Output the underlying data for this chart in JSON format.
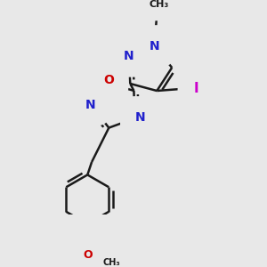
{
  "bg_color": "#e8e8e8",
  "bond_color": "#1a1a1a",
  "bond_width": 1.8,
  "atom_colors": {
    "N": "#2020cc",
    "O": "#cc0000",
    "I": "#cc00cc",
    "C": "#1a1a1a"
  },
  "font_size_atom": 10,
  "font_size_methyl": 8,
  "font_size_iodo": 11,
  "font_size_meo": 9
}
